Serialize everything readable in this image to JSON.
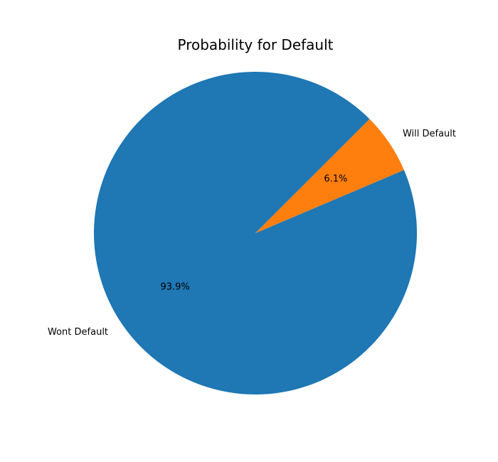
{
  "chart_data": {
    "type": "pie",
    "title": "Probability for Default",
    "slices": [
      {
        "label": "Wont Default",
        "value": 93.9,
        "pct_label": "93.9%",
        "color": "#1f77b4"
      },
      {
        "label": "Will Default",
        "value": 6.1,
        "pct_label": "6.1%",
        "color": "#ff7f0e"
      }
    ],
    "legend": false
  }
}
